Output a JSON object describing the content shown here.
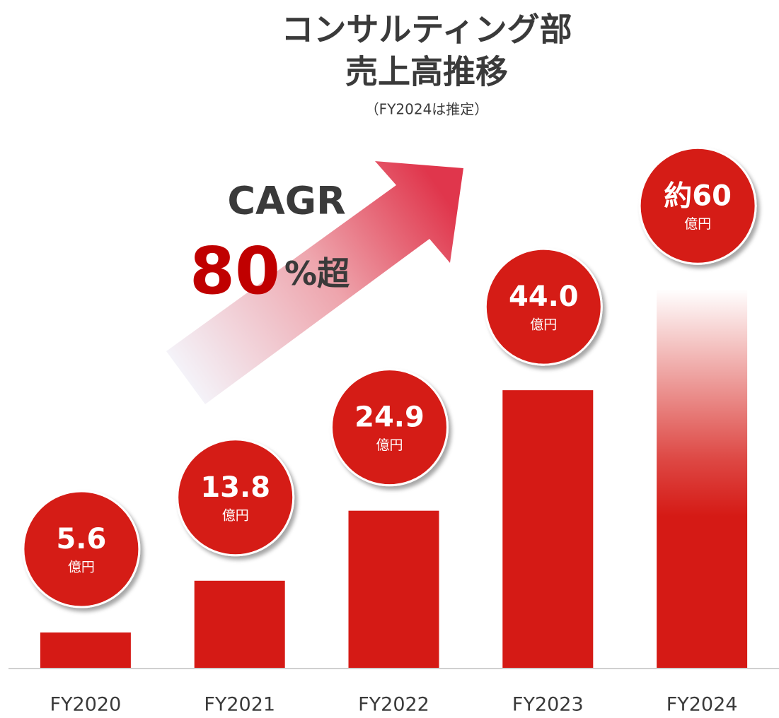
{
  "chart_data": {
    "type": "bar",
    "title": [
      "コンサルティング部",
      "売上高推移"
    ],
    "subtitle": "（FY2024は推定）",
    "annotations": {
      "cagr_label": "CAGR",
      "cagr_value": "80",
      "cagr_suffix": "%超"
    },
    "unit": "億円",
    "categories": [
      "FY2020",
      "FY2021",
      "FY2022",
      "FY2023",
      "FY2024"
    ],
    "values": [
      5.6,
      13.8,
      24.9,
      44.0,
      60
    ],
    "value_labels": [
      "5.6",
      "13.8",
      "24.9",
      "44.0",
      "約60"
    ],
    "color": "#d51a15",
    "ylim": [
      0,
      70
    ]
  }
}
